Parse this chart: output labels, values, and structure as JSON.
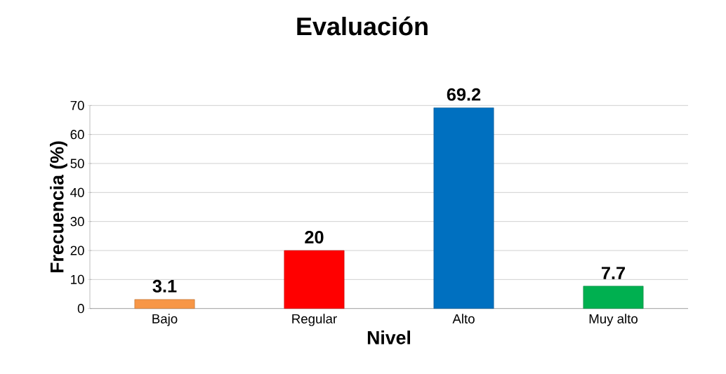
{
  "chart_data": {
    "type": "bar",
    "title": "Evaluación",
    "xlabel": "Nivel",
    "ylabel": "Frecuencia (%)",
    "categories": [
      "Bajo",
      "Regular",
      "Alto",
      "Muy alto"
    ],
    "values": [
      3.1,
      20,
      69.2,
      7.7
    ],
    "colors": [
      "#f79646",
      "#ff0000",
      "#0070c0",
      "#00b050"
    ],
    "ylim": [
      0,
      70
    ],
    "yticks": [
      0,
      10,
      20,
      30,
      40,
      50,
      60,
      70
    ],
    "grid": "y",
    "data_labels": true
  }
}
